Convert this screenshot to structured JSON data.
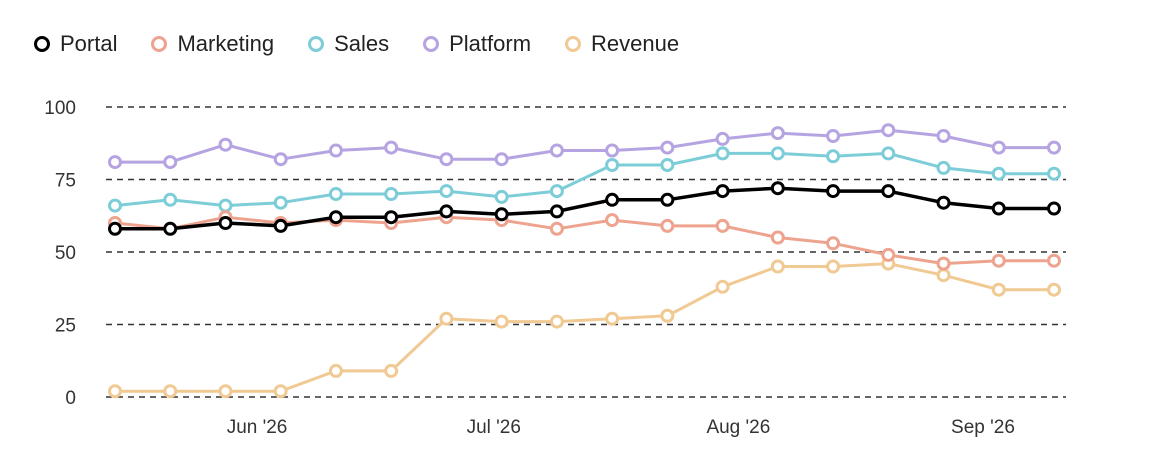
{
  "chart_data": {
    "type": "line",
    "title": "",
    "xlabel": "",
    "ylabel": "",
    "ylim": [
      0,
      100
    ],
    "yticks": [
      0,
      25,
      50,
      75,
      100
    ],
    "grid": "horizontal dashed",
    "legend_position": "top-left",
    "x": [
      "2026-05-14",
      "2026-05-21",
      "2026-05-28",
      "2026-06-04",
      "2026-06-11",
      "2026-06-18",
      "2026-06-25",
      "2026-07-02",
      "2026-07-09",
      "2026-07-16",
      "2026-07-23",
      "2026-07-30",
      "2026-08-06",
      "2026-08-13",
      "2026-08-20",
      "2026-08-27",
      "2026-09-03",
      "2026-09-10"
    ],
    "xticks": [
      {
        "label": "Jun '26",
        "date": "2026-06-01"
      },
      {
        "label": "Jul '26",
        "date": "2026-07-01"
      },
      {
        "label": "Aug '26",
        "date": "2026-08-01"
      },
      {
        "label": "Sep '26",
        "date": "2026-09-01"
      }
    ],
    "series": [
      {
        "name": "Portal",
        "color": "#000000",
        "values": [
          58,
          58,
          60,
          59,
          62,
          62,
          64,
          63,
          64,
          68,
          68,
          71,
          72,
          71,
          71,
          67,
          65,
          65
        ]
      },
      {
        "name": "Marketing",
        "color": "#eda38e",
        "values": [
          60,
          58,
          62,
          60,
          61,
          60,
          62,
          61,
          58,
          61,
          59,
          59,
          55,
          53,
          49,
          46,
          47,
          47
        ]
      },
      {
        "name": "Sales",
        "color": "#7ccdd8",
        "values": [
          66,
          68,
          66,
          67,
          70,
          70,
          71,
          69,
          71,
          80,
          80,
          84,
          84,
          83,
          84,
          79,
          77,
          77
        ]
      },
      {
        "name": "Platform",
        "color": "#b5a3e2",
        "values": [
          81,
          81,
          87,
          82,
          85,
          86,
          82,
          82,
          85,
          85,
          86,
          89,
          91,
          90,
          92,
          90,
          86,
          86
        ]
      },
      {
        "name": "Revenue",
        "color": "#f0c993",
        "values": [
          2,
          2,
          2,
          2,
          9,
          9,
          27,
          26,
          26,
          27,
          28,
          38,
          45,
          45,
          46,
          42,
          37,
          37
        ]
      }
    ]
  }
}
